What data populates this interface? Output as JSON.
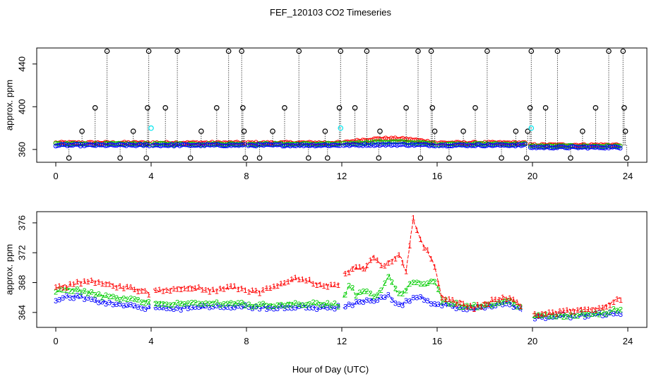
{
  "figure_title": "FEF_120103  CO2 Timeseries",
  "xlabel": "Hour of Day (UTC)",
  "colors": {
    "black": "#000000",
    "red": "#ff0000",
    "green": "#00cd00",
    "blue": "#0000ff",
    "cyan": "#00e5ee"
  },
  "chart_data": [
    {
      "type": "scatter",
      "title": "",
      "ylabel": "approx. ppm",
      "xlim": [
        -0.8,
        24.8
      ],
      "ylim": [
        348,
        455
      ],
      "xticks": [
        0,
        4,
        8,
        12,
        16,
        20,
        24
      ],
      "yticks": [
        360,
        400,
        440
      ],
      "series": [
        {
          "name": "calibration high spikes",
          "color": "black",
          "symbol": "o",
          "y": 452,
          "x": [
            2.15,
            3.9,
            5.1,
            7.25,
            7.8,
            10.2,
            11.95,
            13.05,
            15.2,
            15.75,
            18.1,
            19.95,
            21.05,
            23.2,
            23.8
          ]
        },
        {
          "name": "calibration mid spikes",
          "color": "black",
          "symbol": "o",
          "y": 399,
          "x": [
            1.65,
            3.85,
            4.6,
            6.75,
            7.85,
            9.6,
            11.9,
            12.55,
            14.7,
            15.8,
            17.6,
            19.9,
            20.55,
            22.65,
            23.85
          ]
        },
        {
          "name": "calibration low-mid spikes",
          "color": "black",
          "symbol": "o",
          "y": 377,
          "x": [
            1.1,
            3.25,
            6.1,
            7.9,
            9.1,
            11.3,
            13.6,
            15.9,
            17.1,
            19.3,
            19.8,
            22.1,
            23.9
          ]
        },
        {
          "name": "calibration low dips",
          "color": "black",
          "symbol": "o",
          "y": 352,
          "x": [
            0.55,
            2.7,
            3.8,
            5.65,
            7.95,
            8.55,
            10.6,
            11.4,
            13.55,
            15.3,
            16.5,
            18.7,
            19.75,
            21.6,
            23.95
          ]
        },
        {
          "name": "reference standard",
          "color": "cyan",
          "symbol": "o",
          "points": [
            [
              4.0,
              380
            ],
            [
              11.95,
              380
            ],
            [
              19.95,
              380
            ]
          ]
        },
        {
          "name": "level 1",
          "color": "red",
          "symbol": "o",
          "baseline": 366
        },
        {
          "name": "level 2",
          "color": "green",
          "symbol": "o",
          "baseline": 365
        },
        {
          "name": "level 3",
          "color": "blue",
          "symbol": "o",
          "baseline": 364
        }
      ]
    },
    {
      "type": "line",
      "title": "",
      "ylabel": "approx. ppm",
      "xlim": [
        -0.8,
        24.8
      ],
      "ylim": [
        362,
        377.5
      ],
      "xticks": [
        0,
        4,
        8,
        12,
        16,
        20,
        24
      ],
      "yticks": [
        364,
        368,
        372,
        376
      ],
      "series": [
        {
          "name": "1",
          "color": "red",
          "symbol": "1",
          "points": [
            [
              0.0,
              367.2
            ],
            [
              0.5,
              367.6
            ],
            [
              1.0,
              368.0
            ],
            [
              1.5,
              368.2
            ],
            [
              2.0,
              368.0
            ],
            [
              2.5,
              367.5
            ],
            [
              3.0,
              367.3
            ],
            [
              3.5,
              367.0
            ],
            [
              3.95,
              366.6
            ],
            [
              4.05,
              367.0
            ],
            [
              4.5,
              367.0
            ],
            [
              5.0,
              367.2
            ],
            [
              5.5,
              367.4
            ],
            [
              6.0,
              367.2
            ],
            [
              6.5,
              367.0
            ],
            [
              7.0,
              367.2
            ],
            [
              7.5,
              367.4
            ],
            [
              7.95,
              367.2
            ],
            [
              8.05,
              366.8
            ],
            [
              8.5,
              366.8
            ],
            [
              9.0,
              367.2
            ],
            [
              9.5,
              367.8
            ],
            [
              10.0,
              368.6
            ],
            [
              10.5,
              368.4
            ],
            [
              11.0,
              367.8
            ],
            [
              11.5,
              367.6
            ],
            [
              11.95,
              367.8
            ],
            [
              12.05,
              369.0
            ],
            [
              12.5,
              370.0
            ],
            [
              13.0,
              369.8
            ],
            [
              13.3,
              371.4
            ],
            [
              13.7,
              370.2
            ],
            [
              14.0,
              370.8
            ],
            [
              14.4,
              371.8
            ],
            [
              14.7,
              369.6
            ],
            [
              15.0,
              376.6
            ],
            [
              15.3,
              373.6
            ],
            [
              15.6,
              372.2
            ],
            [
              15.9,
              370.0
            ],
            [
              16.2,
              366.0
            ],
            [
              16.5,
              365.6
            ],
            [
              17.0,
              365.3
            ],
            [
              17.5,
              364.6
            ],
            [
              18.0,
              365.2
            ],
            [
              18.5,
              365.8
            ],
            [
              19.0,
              366.0
            ],
            [
              19.3,
              365.4
            ],
            [
              19.6,
              364.8
            ],
            [
              20.0,
              363.6
            ],
            [
              20.5,
              363.8
            ],
            [
              21.0,
              364.0
            ],
            [
              21.5,
              364.2
            ],
            [
              22.0,
              364.4
            ],
            [
              22.5,
              364.4
            ],
            [
              23.0,
              364.8
            ],
            [
              23.5,
              365.6
            ],
            [
              23.75,
              366.0
            ]
          ]
        },
        {
          "name": "2",
          "color": "green",
          "symbol": "2",
          "points": [
            [
              0.0,
              366.8
            ],
            [
              0.5,
              367.1
            ],
            [
              1.0,
              367.0
            ],
            [
              1.5,
              366.6
            ],
            [
              2.0,
              366.2
            ],
            [
              2.5,
              366.0
            ],
            [
              3.0,
              365.8
            ],
            [
              3.5,
              365.6
            ],
            [
              3.95,
              365.3
            ],
            [
              4.05,
              365.3
            ],
            [
              5.0,
              365.2
            ],
            [
              6.0,
              365.2
            ],
            [
              7.0,
              365.3
            ],
            [
              7.95,
              365.2
            ],
            [
              8.05,
              365.0
            ],
            [
              9.0,
              365.0
            ],
            [
              10.0,
              365.2
            ],
            [
              11.0,
              365.2
            ],
            [
              11.95,
              365.0
            ],
            [
              12.05,
              365.8
            ],
            [
              12.3,
              367.8
            ],
            [
              12.6,
              366.4
            ],
            [
              13.0,
              366.8
            ],
            [
              13.4,
              366.2
            ],
            [
              13.7,
              367.2
            ],
            [
              14.0,
              369.0
            ],
            [
              14.3,
              366.6
            ],
            [
              14.6,
              366.8
            ],
            [
              14.9,
              368.0
            ],
            [
              15.2,
              368.2
            ],
            [
              15.5,
              367.6
            ],
            [
              15.8,
              368.4
            ],
            [
              16.0,
              367.6
            ],
            [
              16.2,
              365.6
            ],
            [
              17.0,
              365.0
            ],
            [
              18.0,
              364.8
            ],
            [
              19.0,
              365.8
            ],
            [
              19.4,
              364.9
            ],
            [
              19.7,
              364.4
            ],
            [
              20.0,
              363.5
            ],
            [
              21.0,
              363.6
            ],
            [
              22.0,
              363.8
            ],
            [
              23.0,
              364.0
            ],
            [
              23.75,
              364.5
            ]
          ]
        },
        {
          "name": "3",
          "color": "blue",
          "symbol": "3",
          "points": [
            [
              0.0,
              365.8
            ],
            [
              0.5,
              366.2
            ],
            [
              1.0,
              366.1
            ],
            [
              1.5,
              365.6
            ],
            [
              2.0,
              365.4
            ],
            [
              2.5,
              365.1
            ],
            [
              3.0,
              364.9
            ],
            [
              3.5,
              364.7
            ],
            [
              3.95,
              364.6
            ],
            [
              4.05,
              364.6
            ],
            [
              5.0,
              364.6
            ],
            [
              6.0,
              364.7
            ],
            [
              7.0,
              364.8
            ],
            [
              7.95,
              364.8
            ],
            [
              8.05,
              364.7
            ],
            [
              9.0,
              364.7
            ],
            [
              10.0,
              364.8
            ],
            [
              11.0,
              364.6
            ],
            [
              11.95,
              364.7
            ],
            [
              12.05,
              364.7
            ],
            [
              12.5,
              365.2
            ],
            [
              13.0,
              365.6
            ],
            [
              13.5,
              365.8
            ],
            [
              14.0,
              366.2
            ],
            [
              14.4,
              365.0
            ],
            [
              14.8,
              365.6
            ],
            [
              15.2,
              366.2
            ],
            [
              15.6,
              365.6
            ],
            [
              16.0,
              364.9
            ],
            [
              16.2,
              365.2
            ],
            [
              17.0,
              364.5
            ],
            [
              18.0,
              364.6
            ],
            [
              18.5,
              365.2
            ],
            [
              19.0,
              365.4
            ],
            [
              19.3,
              364.8
            ],
            [
              19.6,
              364.2
            ],
            [
              20.0,
              363.4
            ],
            [
              21.0,
              363.5
            ],
            [
              22.0,
              363.6
            ],
            [
              23.0,
              363.8
            ],
            [
              23.75,
              364.0
            ]
          ]
        }
      ]
    }
  ]
}
